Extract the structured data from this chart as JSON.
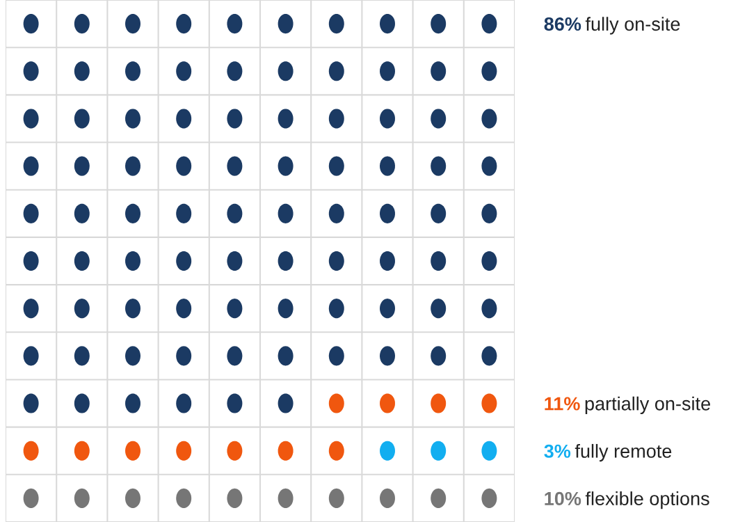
{
  "chart_data": {
    "type": "other",
    "categories": [
      "fully on-site",
      "partially on-site",
      "fully remote",
      "flexible options"
    ],
    "values": [
      86,
      11,
      3,
      10
    ],
    "value_labels": [
      "86%",
      "11%",
      "3%",
      "10%"
    ],
    "colors": [
      "#1b3a63",
      "#f0570f",
      "#12aef0",
      "#767676"
    ]
  }
}
